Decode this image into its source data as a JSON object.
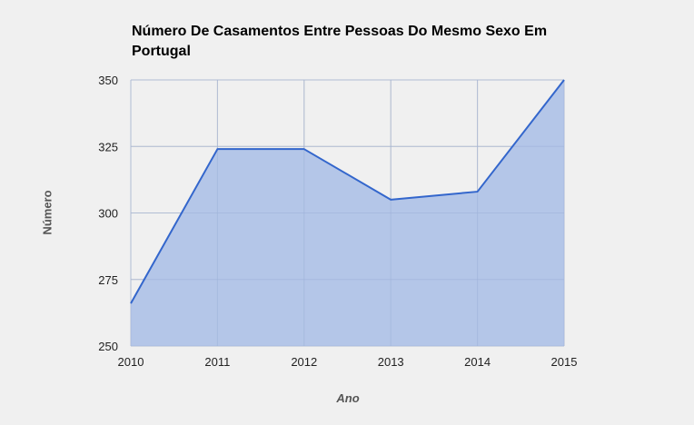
{
  "chart_data": {
    "type": "area",
    "title": "Número De Casamentos Entre Pessoas Do Mesmo Sexo Em Portugal",
    "xlabel": "Ano",
    "ylabel": "Número",
    "x": [
      "2010",
      "2011",
      "2012",
      "2013",
      "2014",
      "2015"
    ],
    "series": [
      {
        "values": [
          266,
          324,
          324,
          305,
          308,
          350
        ]
      }
    ],
    "ylim": [
      250,
      350
    ],
    "yticks": [
      250,
      275,
      300,
      325,
      350
    ],
    "grid": true,
    "colors": {
      "line": "#3366cc",
      "fill": "#b4c6e8",
      "grid": "#cccccc",
      "background": "#f0f0f0"
    }
  }
}
